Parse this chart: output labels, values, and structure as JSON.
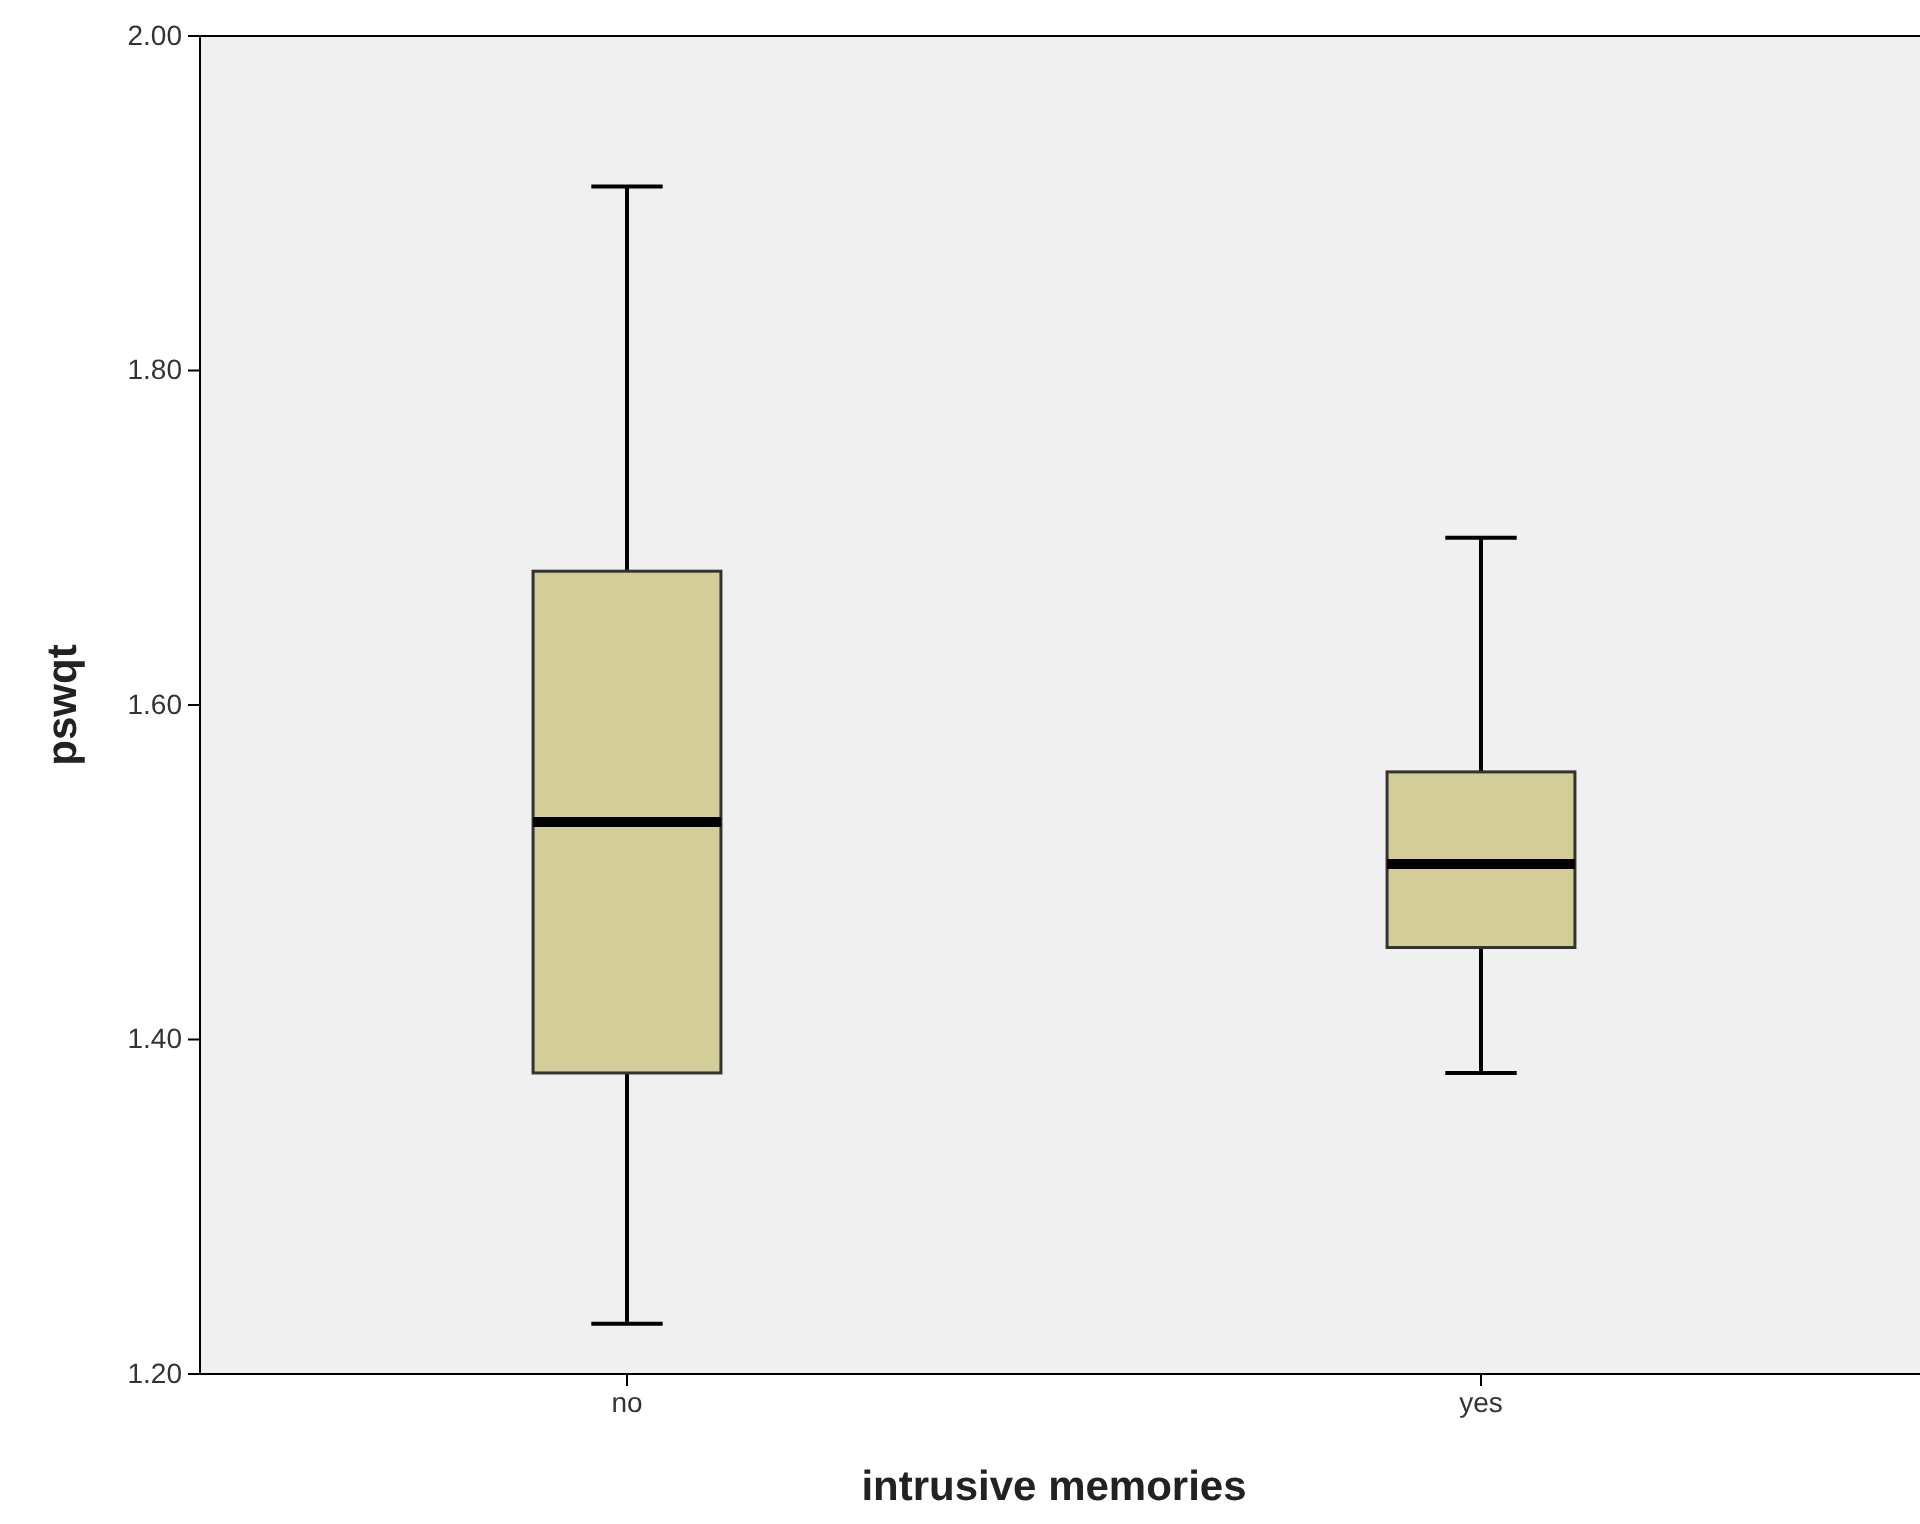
{
  "chart_data": {
    "type": "box",
    "xlabel": "intrusive memories",
    "ylabel": "pswqt",
    "categories": [
      "no",
      "yes"
    ],
    "boxes": [
      {
        "low": 1.23,
        "q1": 1.38,
        "median": 1.53,
        "q3": 1.68,
        "high": 1.91
      },
      {
        "low": 1.38,
        "q1": 1.455,
        "median": 1.505,
        "q3": 1.56,
        "high": 1.7
      }
    ],
    "color": "#d3ce97",
    "ylim": [
      1.2,
      2.0
    ],
    "yticks": [
      {
        "value": 1.2,
        "label": "1.20"
      },
      {
        "value": 1.4,
        "label": "1.40"
      },
      {
        "value": 1.6,
        "label": "1.60"
      },
      {
        "value": 1.8,
        "label": "1.80"
      },
      {
        "value": 2.0,
        "label": "2.00"
      }
    ],
    "grid": false
  }
}
